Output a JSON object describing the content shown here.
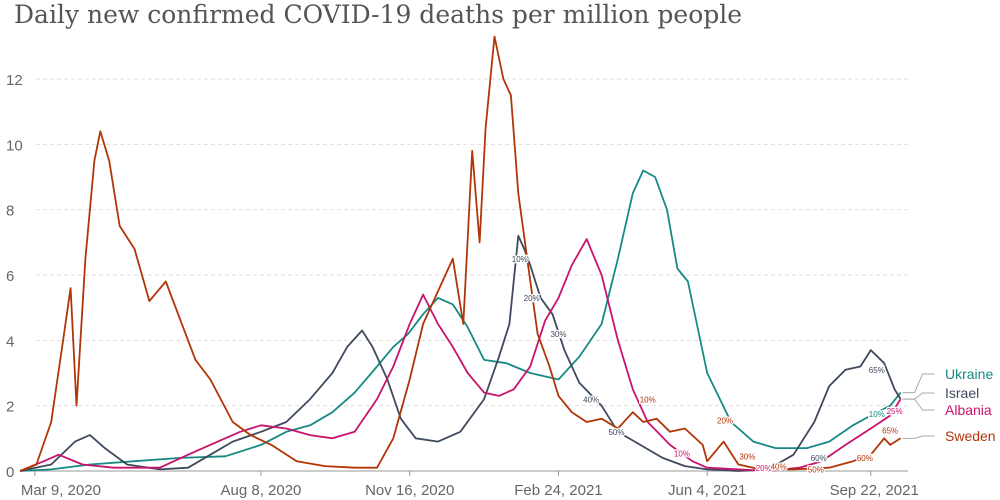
{
  "chart_data": {
    "type": "line",
    "title": "Daily new confirmed COVID-19 deaths per million people",
    "xlabel": "",
    "ylabel": "",
    "x_range": [
      "2020-02-28",
      "2021-10-17"
    ],
    "ylim": [
      0,
      13.5
    ],
    "y_ticks": [
      0,
      2,
      4,
      6,
      8,
      10,
      12
    ],
    "x_ticks": [
      {
        "date": "2020-03-09",
        "label": "Mar 9, 2020"
      },
      {
        "date": "2020-08-08",
        "label": "Aug 8, 2020"
      },
      {
        "date": "2020-11-16",
        "label": "Nov 16, 2020"
      },
      {
        "date": "2021-02-24",
        "label": "Feb 24, 2021"
      },
      {
        "date": "2021-06-04",
        "label": "Jun 4, 2021"
      },
      {
        "date": "2021-09-22",
        "label": "Sep 22, 2021"
      }
    ],
    "grid": "horizontal dashed",
    "series": [
      {
        "name": "Ukraine",
        "color": "#178a84",
        "points": [
          [
            "2020-02-28",
            0
          ],
          [
            "2020-03-20",
            0.05
          ],
          [
            "2020-04-15",
            0.2
          ],
          [
            "2020-05-15",
            0.3
          ],
          [
            "2020-06-15",
            0.4
          ],
          [
            "2020-07-15",
            0.45
          ],
          [
            "2020-08-08",
            0.8
          ],
          [
            "2020-08-25",
            1.2
          ],
          [
            "2020-09-10",
            1.4
          ],
          [
            "2020-09-25",
            1.8
          ],
          [
            "2020-10-10",
            2.4
          ],
          [
            "2020-10-25",
            3.2
          ],
          [
            "2020-11-05",
            3.8
          ],
          [
            "2020-11-15",
            4.2
          ],
          [
            "2020-11-25",
            4.8
          ],
          [
            "2020-12-05",
            5.3
          ],
          [
            "2020-12-15",
            5.1
          ],
          [
            "2020-12-25",
            4.4
          ],
          [
            "2021-01-05",
            3.4
          ],
          [
            "2021-01-20",
            3.3
          ],
          [
            "2021-02-05",
            3.0
          ],
          [
            "2021-02-24",
            2.8
          ],
          [
            "2021-03-10",
            3.5
          ],
          [
            "2021-03-25",
            4.5
          ],
          [
            "2021-04-05",
            6.5
          ],
          [
            "2021-04-15",
            8.5
          ],
          [
            "2021-04-22",
            9.2
          ],
          [
            "2021-04-30",
            9.0
          ],
          [
            "2021-05-08",
            8.0
          ],
          [
            "2021-05-15",
            6.2
          ],
          [
            "2021-05-22",
            5.8
          ],
          [
            "2021-06-04",
            3.0
          ],
          [
            "2021-06-20",
            1.5
          ],
          [
            "2021-07-05",
            0.9
          ],
          [
            "2021-07-20",
            0.7
          ],
          [
            "2021-08-10",
            0.7
          ],
          [
            "2021-08-25",
            0.9
          ],
          [
            "2021-09-10",
            1.4
          ],
          [
            "2021-09-22",
            1.7
          ],
          [
            "2021-10-05",
            2.0
          ],
          [
            "2021-10-12",
            2.4
          ]
        ]
      },
      {
        "name": "Israel",
        "color": "#3e4a5e",
        "points": [
          [
            "2020-02-28",
            0
          ],
          [
            "2020-03-20",
            0.2
          ],
          [
            "2020-04-05",
            0.9
          ],
          [
            "2020-04-15",
            1.1
          ],
          [
            "2020-04-25",
            0.7
          ],
          [
            "2020-05-10",
            0.2
          ],
          [
            "2020-06-01",
            0.05
          ],
          [
            "2020-06-20",
            0.1
          ],
          [
            "2020-07-05",
            0.5
          ],
          [
            "2020-07-20",
            0.9
          ],
          [
            "2020-08-08",
            1.2
          ],
          [
            "2020-08-25",
            1.5
          ],
          [
            "2020-09-10",
            2.2
          ],
          [
            "2020-09-25",
            3.0
          ],
          [
            "2020-10-05",
            3.8
          ],
          [
            "2020-10-15",
            4.3
          ],
          [
            "2020-10-22",
            3.8
          ],
          [
            "2020-11-01",
            2.8
          ],
          [
            "2020-11-10",
            1.6
          ],
          [
            "2020-11-20",
            1.0
          ],
          [
            "2020-12-05",
            0.9
          ],
          [
            "2020-12-20",
            1.2
          ],
          [
            "2021-01-05",
            2.2
          ],
          [
            "2021-01-15",
            3.5
          ],
          [
            "2021-01-22",
            4.5
          ],
          [
            "2021-01-28",
            7.2
          ],
          [
            "2021-02-01",
            6.8
          ],
          [
            "2021-02-05",
            6.3
          ],
          [
            "2021-02-12",
            5.3
          ],
          [
            "2021-02-20",
            4.8
          ],
          [
            "2021-02-28",
            3.7
          ],
          [
            "2021-03-10",
            2.7
          ],
          [
            "2021-03-25",
            2.0
          ],
          [
            "2021-04-05",
            1.2
          ],
          [
            "2021-04-20",
            0.8
          ],
          [
            "2021-05-05",
            0.4
          ],
          [
            "2021-05-20",
            0.15
          ],
          [
            "2021-06-04",
            0.05
          ],
          [
            "2021-06-25",
            0
          ],
          [
            "2021-07-15",
            0.05
          ],
          [
            "2021-08-01",
            0.5
          ],
          [
            "2021-08-15",
            1.5
          ],
          [
            "2021-08-25",
            2.6
          ],
          [
            "2021-09-05",
            3.1
          ],
          [
            "2021-09-15",
            3.2
          ],
          [
            "2021-09-22",
            3.7
          ],
          [
            "2021-10-01",
            3.3
          ],
          [
            "2021-10-08",
            2.5
          ],
          [
            "2021-10-12",
            2.2
          ]
        ]
      },
      {
        "name": "Albania",
        "color": "#c8136d",
        "points": [
          [
            "2020-02-28",
            0
          ],
          [
            "2020-03-15",
            0.3
          ],
          [
            "2020-03-25",
            0.5
          ],
          [
            "2020-04-10",
            0.2
          ],
          [
            "2020-05-01",
            0.1
          ],
          [
            "2020-06-01",
            0.1
          ],
          [
            "2020-06-20",
            0.5
          ],
          [
            "2020-07-10",
            0.9
          ],
          [
            "2020-07-25",
            1.2
          ],
          [
            "2020-08-08",
            1.4
          ],
          [
            "2020-08-25",
            1.3
          ],
          [
            "2020-09-10",
            1.1
          ],
          [
            "2020-09-25",
            1.0
          ],
          [
            "2020-10-10",
            1.2
          ],
          [
            "2020-10-25",
            2.2
          ],
          [
            "2020-11-05",
            3.2
          ],
          [
            "2020-11-16",
            4.5
          ],
          [
            "2020-11-25",
            5.4
          ],
          [
            "2020-12-05",
            4.5
          ],
          [
            "2020-12-15",
            3.8
          ],
          [
            "2020-12-25",
            3.0
          ],
          [
            "2021-01-05",
            2.4
          ],
          [
            "2021-01-15",
            2.3
          ],
          [
            "2021-01-25",
            2.5
          ],
          [
            "2021-02-05",
            3.2
          ],
          [
            "2021-02-15",
            4.6
          ],
          [
            "2021-02-24",
            5.3
          ],
          [
            "2021-03-05",
            6.3
          ],
          [
            "2021-03-15",
            7.1
          ],
          [
            "2021-03-25",
            6.0
          ],
          [
            "2021-04-05",
            4.0
          ],
          [
            "2021-04-15",
            2.5
          ],
          [
            "2021-04-25",
            1.5
          ],
          [
            "2021-05-10",
            0.8
          ],
          [
            "2021-05-25",
            0.3
          ],
          [
            "2021-06-04",
            0.1
          ],
          [
            "2021-06-25",
            0.05
          ],
          [
            "2021-07-15",
            0
          ],
          [
            "2021-08-05",
            0.1
          ],
          [
            "2021-08-20",
            0.3
          ],
          [
            "2021-09-05",
            0.8
          ],
          [
            "2021-09-22",
            1.3
          ],
          [
            "2021-10-05",
            1.7
          ],
          [
            "2021-10-12",
            2.2
          ]
        ]
      },
      {
        "name": "Sweden",
        "color": "#b13507",
        "points": [
          [
            "2020-02-28",
            0
          ],
          [
            "2020-03-10",
            0.2
          ],
          [
            "2020-03-20",
            1.5
          ],
          [
            "2020-03-28",
            4.0
          ],
          [
            "2020-04-02",
            5.6
          ],
          [
            "2020-04-06",
            2.0
          ],
          [
            "2020-04-12",
            6.5
          ],
          [
            "2020-04-18",
            9.5
          ],
          [
            "2020-04-22",
            10.4
          ],
          [
            "2020-04-28",
            9.5
          ],
          [
            "2020-05-05",
            7.5
          ],
          [
            "2020-05-15",
            6.8
          ],
          [
            "2020-05-25",
            5.2
          ],
          [
            "2020-06-05",
            5.8
          ],
          [
            "2020-06-15",
            4.6
          ],
          [
            "2020-06-25",
            3.4
          ],
          [
            "2020-07-05",
            2.8
          ],
          [
            "2020-07-20",
            1.5
          ],
          [
            "2020-08-01",
            1.1
          ],
          [
            "2020-08-15",
            0.8
          ],
          [
            "2020-09-01",
            0.3
          ],
          [
            "2020-09-20",
            0.15
          ],
          [
            "2020-10-10",
            0.1
          ],
          [
            "2020-10-25",
            0.1
          ],
          [
            "2020-11-05",
            1.0
          ],
          [
            "2020-11-16",
            2.8
          ],
          [
            "2020-11-25",
            4.5
          ],
          [
            "2020-12-05",
            5.5
          ],
          [
            "2020-12-15",
            6.5
          ],
          [
            "2020-12-22",
            4.5
          ],
          [
            "2020-12-28",
            9.8
          ],
          [
            "2021-01-02",
            7.0
          ],
          [
            "2021-01-06",
            10.5
          ],
          [
            "2021-01-12",
            13.3
          ],
          [
            "2021-01-18",
            12.0
          ],
          [
            "2021-01-23",
            11.5
          ],
          [
            "2021-01-28",
            8.5
          ],
          [
            "2021-02-03",
            6.5
          ],
          [
            "2021-02-10",
            4.2
          ],
          [
            "2021-02-18",
            3.2
          ],
          [
            "2021-02-24",
            2.3
          ],
          [
            "2021-03-05",
            1.8
          ],
          [
            "2021-03-15",
            1.5
          ],
          [
            "2021-03-25",
            1.6
          ],
          [
            "2021-04-05",
            1.3
          ],
          [
            "2021-04-15",
            1.8
          ],
          [
            "2021-04-22",
            1.5
          ],
          [
            "2021-05-01",
            1.6
          ],
          [
            "2021-05-10",
            1.2
          ],
          [
            "2021-05-20",
            1.3
          ],
          [
            "2021-06-01",
            0.8
          ],
          [
            "2021-06-04",
            0.3
          ],
          [
            "2021-06-15",
            0.9
          ],
          [
            "2021-06-25",
            0.2
          ],
          [
            "2021-07-10",
            0.05
          ],
          [
            "2021-08-01",
            0.05
          ],
          [
            "2021-08-25",
            0.1
          ],
          [
            "2021-09-10",
            0.3
          ],
          [
            "2021-09-22",
            0.5
          ],
          [
            "2021-10-01",
            1.0
          ],
          [
            "2021-10-05",
            0.8
          ],
          [
            "2021-10-12",
            1.0
          ]
        ]
      }
    ],
    "annotations": [
      {
        "text": "10%",
        "series": "Israel",
        "date": "2021-01-29",
        "y": 6.4
      },
      {
        "text": "20%",
        "series": "Israel",
        "date": "2021-02-06",
        "y": 5.2
      },
      {
        "text": "30%",
        "series": "Israel",
        "date": "2021-02-24",
        "y": 4.1
      },
      {
        "text": "40%",
        "series": "Israel",
        "date": "2021-03-18",
        "y": 2.1
      },
      {
        "text": "50%",
        "series": "Israel",
        "date": "2021-04-04",
        "y": 1.1
      },
      {
        "text": "60%",
        "series": "Israel",
        "date": "2021-08-18",
        "y": 0.3
      },
      {
        "text": "65%",
        "series": "Israel",
        "date": "2021-09-26",
        "y": 3.0
      },
      {
        "text": "10%",
        "series": "Albania",
        "date": "2021-05-18",
        "y": 0.45
      },
      {
        "text": "20%",
        "series": "Albania",
        "date": "2021-07-12",
        "y": 0.0
      },
      {
        "text": "25%",
        "series": "Albania",
        "date": "2021-10-08",
        "y": 1.75
      },
      {
        "text": "10%",
        "series": "Sweden",
        "date": "2021-04-25",
        "y": 2.1
      },
      {
        "text": "20%",
        "series": "Sweden",
        "date": "2021-06-16",
        "y": 1.45
      },
      {
        "text": "30%",
        "series": "Sweden",
        "date": "2021-07-01",
        "y": 0.35
      },
      {
        "text": "40%",
        "series": "Sweden",
        "date": "2021-07-22",
        "y": 0.05
      },
      {
        "text": "50%",
        "series": "Sweden",
        "date": "2021-08-16",
        "y": -0.05
      },
      {
        "text": "60%",
        "series": "Sweden",
        "date": "2021-09-18",
        "y": 0.3
      },
      {
        "text": "65%",
        "series": "Sweden",
        "date": "2021-10-05",
        "y": 1.15
      },
      {
        "text": "10%",
        "series": "Ukraine",
        "date": "2021-09-26",
        "y": 1.65
      }
    ]
  }
}
